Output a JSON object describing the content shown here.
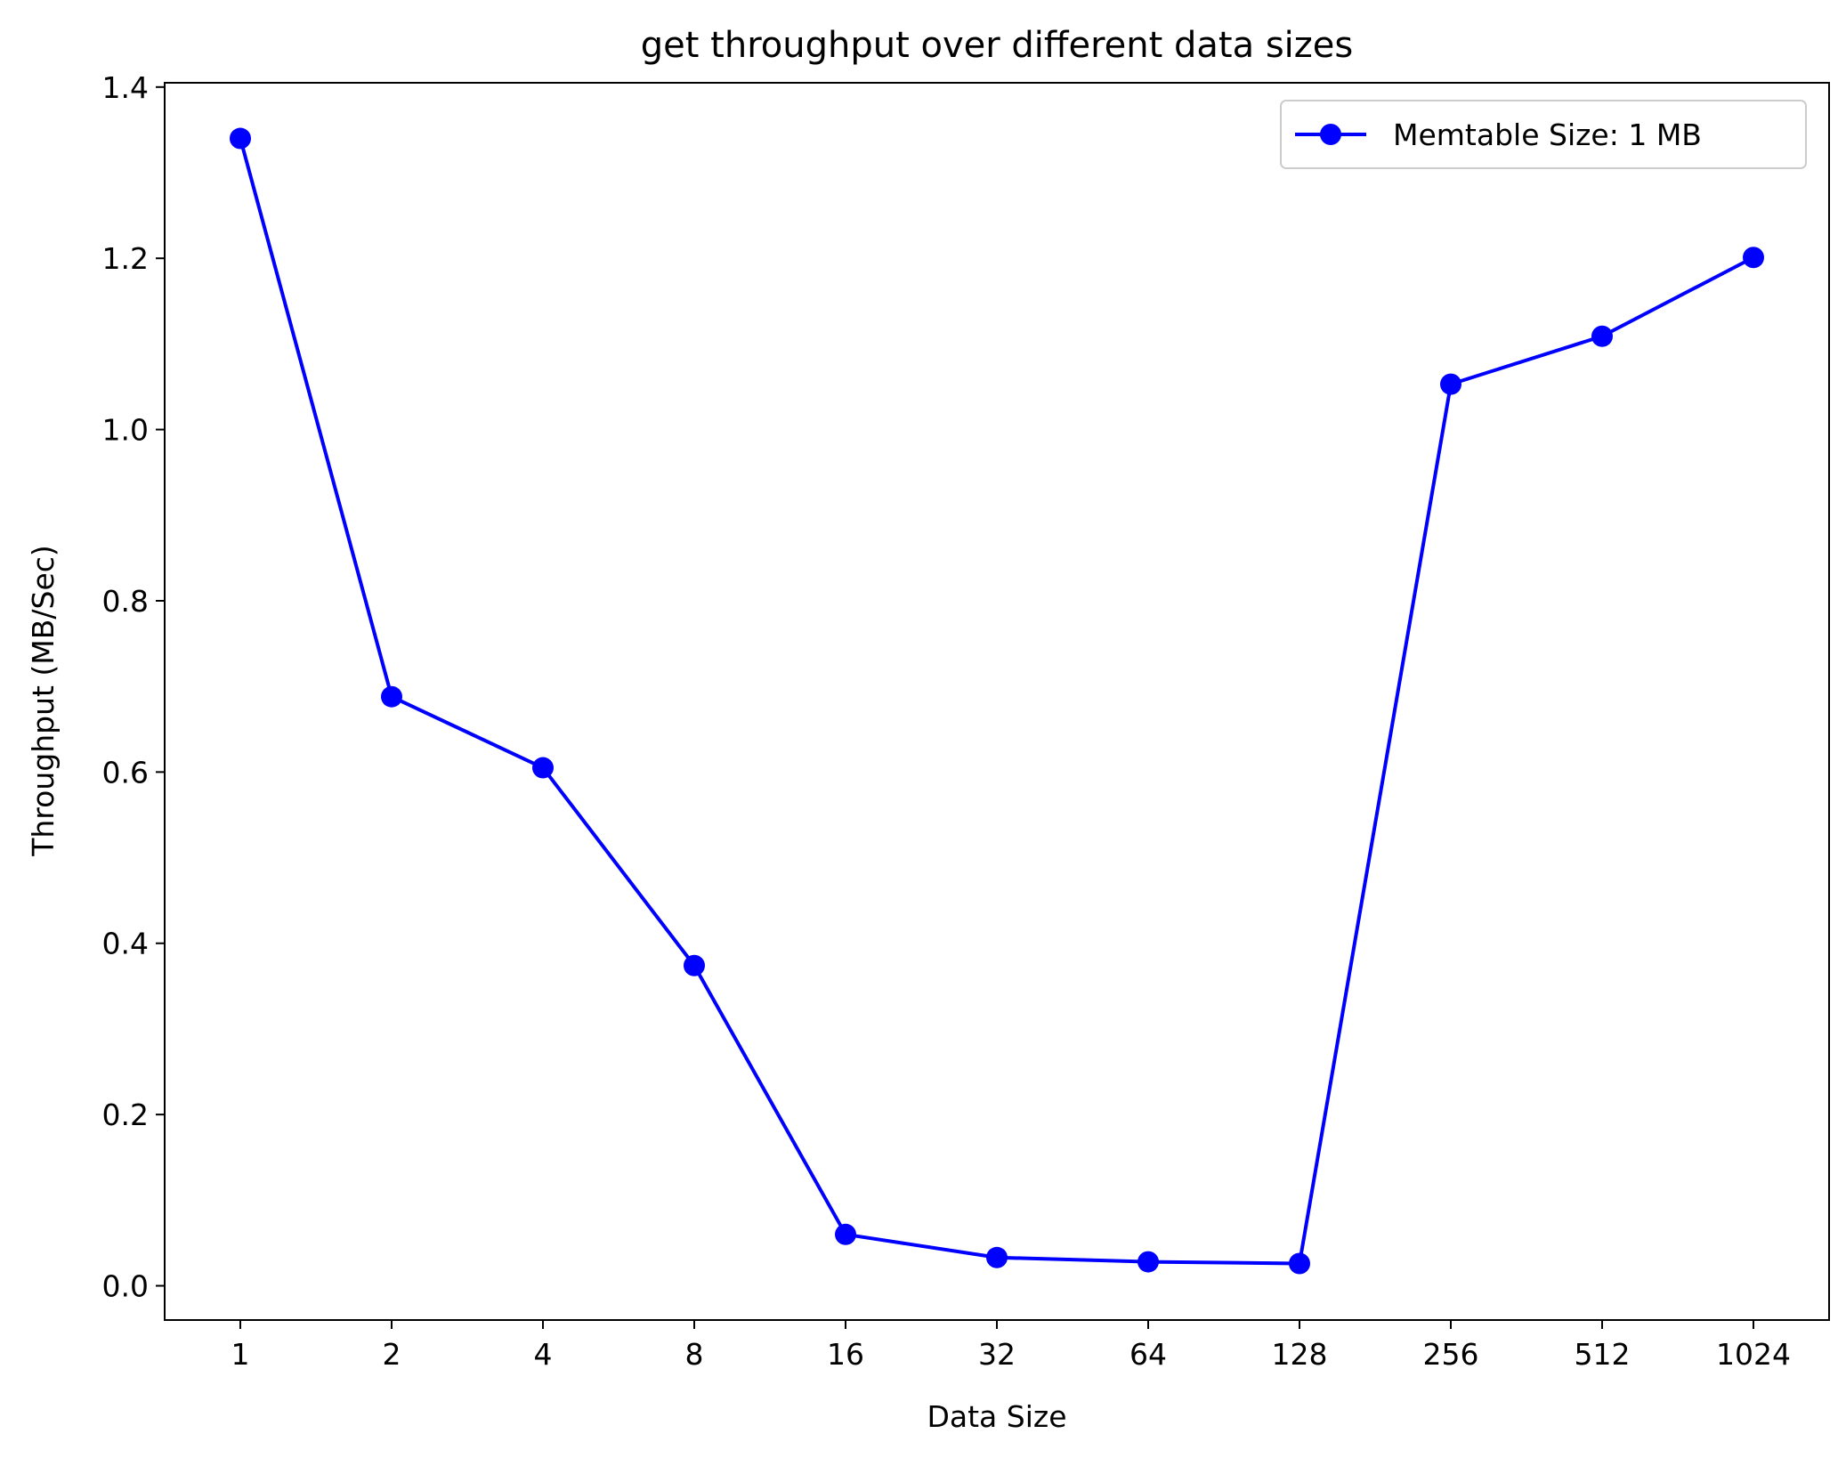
{
  "chart_data": {
    "type": "line",
    "title": "get throughput over different data sizes",
    "xlabel": "Data Size",
    "ylabel": "Throughput (MB/Sec)",
    "categories": [
      "1",
      "2",
      "4",
      "8",
      "16",
      "32",
      "64",
      "128",
      "256",
      "512",
      "1024"
    ],
    "y_ticks": [
      "0.0",
      "0.2",
      "0.4",
      "0.6",
      "0.8",
      "1.0",
      "1.2",
      "1.4"
    ],
    "ylim": [
      -0.04,
      1.405
    ],
    "grid": false,
    "legend_position": "top-right",
    "series": [
      {
        "name": "Memtable Size: 1 MB",
        "color": "#0000ff",
        "marker": "circle",
        "values": [
          1.34,
          0.688,
          0.605,
          0.374,
          0.06,
          0.033,
          0.028,
          0.026,
          1.053,
          1.109,
          1.201
        ]
      }
    ]
  }
}
